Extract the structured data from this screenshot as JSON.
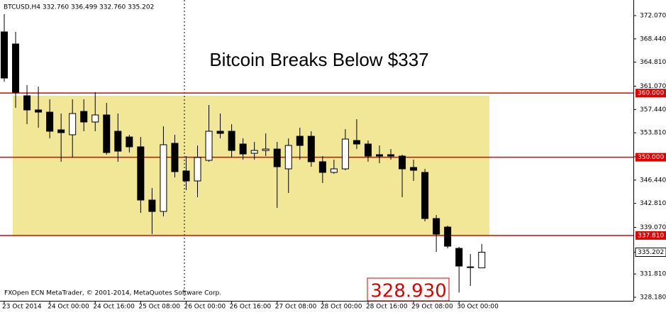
{
  "chart_data": {
    "type": "candlestick",
    "header": "BTCUSD,H4  332.760 336.499 332.760 335.202",
    "title": "Bitcoin Breaks Below $337",
    "footer": "FXOpen ECN MetaTrader, © 2001-2014, MetaQuotes Software Corp.",
    "categories": [
      "23 Oct 2014",
      null,
      null,
      null,
      "24 Oct 00:00",
      null,
      null,
      null,
      "24 Oct 16:00",
      null,
      null,
      null,
      "25 Oct 08:00",
      null,
      null,
      null,
      "26 Oct 00:00",
      null,
      null,
      null,
      "26 Oct 16:00",
      null,
      null,
      null,
      "27 Oct 08:00",
      null,
      null,
      null,
      "28 Oct 00:00",
      null,
      null,
      null,
      "28 Oct 16:00",
      null,
      null,
      null,
      "29 Oct 08:00",
      null,
      null,
      null,
      "30 Oct 00:00",
      null,
      null
    ],
    "open": [
      369.53,
      367.65,
      359.58,
      357.37,
      357.03,
      354.27,
      353.5,
      357.14,
      355.49,
      356.59,
      354.05,
      353.16,
      351.62,
      343.33,
      341.55,
      352.17,
      347.86,
      346.31,
      349.52,
      354.05,
      354.05,
      352.06,
      350.62,
      351.06,
      351.28,
      348.19,
      353.27,
      353.27,
      349.3,
      347.64,
      348.19,
      352.61,
      352.06,
      350.4,
      350.4,
      350.18,
      348.41,
      347.64,
      340.45,
      339.12,
      335.8,
      332.82,
      332.76
    ],
    "high": [
      372.29,
      369.53,
      361.23,
      361.01,
      359.02,
      356.81,
      359.02,
      359.02,
      360.13,
      358.47,
      356.81,
      353.5,
      353.16,
      345.2,
      354.82,
      353.5,
      350.18,
      351.84,
      358.14,
      356.81,
      355.15,
      352.94,
      352.39,
      353.72,
      352.39,
      352.94,
      354.6,
      354.05,
      350.18,
      349.63,
      354.38,
      355.93,
      352.61,
      351.84,
      351.28,
      350.4,
      349.63,
      348.19,
      341.0,
      339.34,
      336.03,
      334.92,
      336.499
    ],
    "low": [
      361.79,
      357.7,
      355.15,
      354.6,
      352.94,
      349.3,
      349.96,
      354.05,
      354.05,
      350.4,
      349.3,
      350.73,
      341.33,
      338.02,
      340.78,
      346.86,
      344.87,
      343.77,
      349.3,
      352.94,
      349.96,
      349.63,
      349.63,
      350.18,
      342.11,
      344.43,
      349.63,
      348.52,
      345.98,
      347.42,
      347.97,
      351.28,
      349.3,
      349.07,
      349.63,
      343.77,
      346.31,
      340.01,
      335.25,
      335.8,
      328.93,
      329.95,
      332.76
    ],
    "close": [
      362.34,
      360.13,
      357.37,
      357.03,
      354.05,
      353.83,
      356.81,
      355.49,
      356.59,
      350.73,
      350.95,
      351.62,
      343.33,
      341.55,
      351.95,
      347.75,
      346.31,
      349.96,
      354.05,
      353.72,
      351.06,
      350.51,
      351.06,
      351.28,
      348.52,
      351.84,
      351.84,
      349.3,
      347.64,
      348.19,
      352.83,
      352.06,
      350.18,
      350.18,
      350.18,
      348.19,
      347.97,
      340.45,
      338.02,
      336.14,
      333.04,
      332.92,
      335.202
    ],
    "up_color": "#ffffff",
    "down_color": "#000000",
    "ylim": [
      327.63,
      374.5
    ],
    "yticks": [
      {
        "value": 372.07,
        "label": "372.070"
      },
      {
        "value": 368.44,
        "label": "368.440"
      },
      {
        "value": 364.81,
        "label": "364.810"
      },
      {
        "value": 361.07,
        "label": "361.070"
      },
      {
        "value": 357.44,
        "label": "357.440"
      },
      {
        "value": 353.81,
        "label": "353.810"
      },
      {
        "value": 350.07,
        "label": "350.070"
      },
      {
        "value": 346.44,
        "label": "346.440"
      },
      {
        "value": 342.81,
        "label": "342.810"
      },
      {
        "value": 339.07,
        "label": "339.070"
      },
      {
        "value": 331.81,
        "label": "331.810"
      },
      {
        "value": 328.18,
        "label": "328.180"
      }
    ],
    "levels": [
      {
        "value": 360,
        "label": "360.000"
      },
      {
        "value": 350,
        "label": "350.000"
      },
      {
        "value": 337.81,
        "label": "337.810"
      }
    ],
    "level_color": "#e00000",
    "current_price": {
      "value": 335.202,
      "label": "335.202"
    },
    "zone": {
      "from": 337.81,
      "to": 359.6,
      "color": "#f2e697"
    },
    "annotations": [
      "328.930"
    ]
  }
}
